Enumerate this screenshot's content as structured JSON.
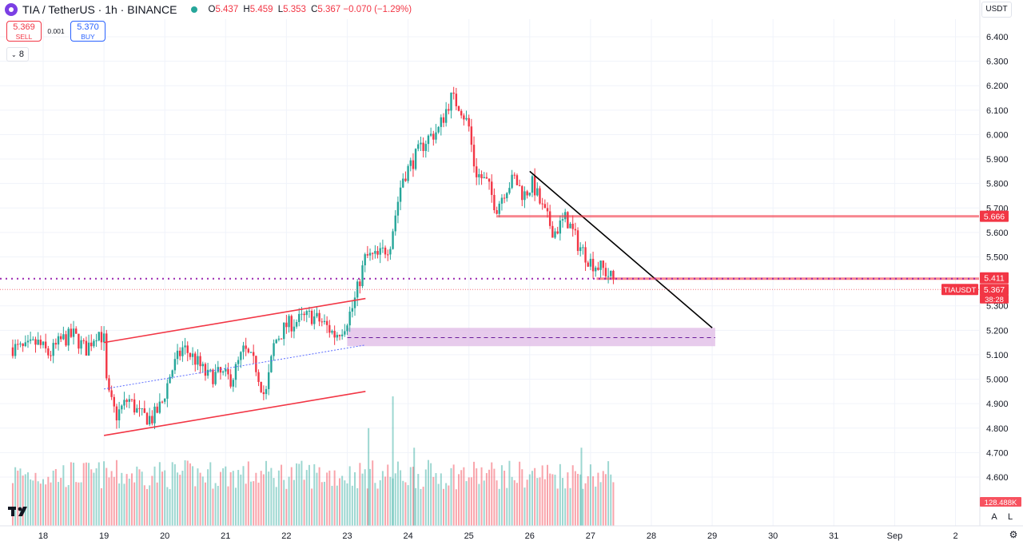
{
  "header": {
    "title": "TIA / TetherUS · 1h · BINANCE",
    "ohlc": [
      {
        "k": "O",
        "v": "5.437"
      },
      {
        "k": "H",
        "v": "5.459"
      },
      {
        "k": "L",
        "v": "5.353"
      },
      {
        "k": "C",
        "v": "5.367"
      }
    ],
    "change": "−0.070 (−1.29%)"
  },
  "trade": {
    "sell_price": "5.369",
    "sell_label": "SELL",
    "spread": "0.001",
    "buy_price": "5.370",
    "buy_label": "BUY"
  },
  "indicators_count": "8",
  "currency": "USDT",
  "price_axis": [
    "6.400",
    "6.300",
    "6.200",
    "6.100",
    "6.000",
    "5.900",
    "5.800",
    "5.700",
    "5.600",
    "5.500",
    "5.300",
    "5.200",
    "5.100",
    "5.000",
    "4.900",
    "4.800",
    "4.700",
    "4.600"
  ],
  "time_axis": [
    "18",
    "19",
    "20",
    "21",
    "22",
    "23",
    "24",
    "25",
    "26",
    "27",
    "28",
    "29",
    "30",
    "31",
    "Sep",
    "2"
  ],
  "price_labels": {
    "resistance": "5.666",
    "support": "5.411",
    "symbol": "TIAUSDT",
    "last": "5.367",
    "countdown": "38:28",
    "volume": "128.488K"
  },
  "buttons": {
    "auto": "A",
    "log": "L"
  },
  "colors": {
    "up": "#26a69a",
    "down": "#f23645",
    "purple": "#9c27b0",
    "zone": "#e1bee7",
    "channel": "#f23645",
    "trend": "#000000"
  },
  "chart_data": {
    "type": "candlestick",
    "symbol": "TIA / TetherUS",
    "interval": "1h",
    "x_labels": [
      "18",
      "19",
      "20",
      "21",
      "22",
      "23",
      "24",
      "25",
      "26",
      "27",
      "28",
      "29",
      "30",
      "31",
      "Sep",
      "2"
    ],
    "ylim": [
      4.5,
      6.45
    ],
    "price_path": [
      [
        17.5,
        5.13
      ],
      [
        17.7,
        5.12
      ],
      [
        17.9,
        5.15
      ],
      [
        18.1,
        5.1
      ],
      [
        18.3,
        5.16
      ],
      [
        18.5,
        5.18
      ],
      [
        18.7,
        5.12
      ],
      [
        18.9,
        5.2
      ],
      [
        19.0,
        5.16
      ],
      [
        19.05,
        4.95
      ],
      [
        19.2,
        4.85
      ],
      [
        19.4,
        4.92
      ],
      [
        19.6,
        4.85
      ],
      [
        19.8,
        4.84
      ],
      [
        19.95,
        4.9
      ],
      [
        20.1,
        5.03
      ],
      [
        20.3,
        5.13
      ],
      [
        20.5,
        5.08
      ],
      [
        20.7,
        5.01
      ],
      [
        20.9,
        5.02
      ],
      [
        21.1,
        5.0
      ],
      [
        21.3,
        5.12
      ],
      [
        21.5,
        5.05
      ],
      [
        21.65,
        4.92
      ],
      [
        21.8,
        5.15
      ],
      [
        22.0,
        5.22
      ],
      [
        22.2,
        5.24
      ],
      [
        22.4,
        5.26
      ],
      [
        22.6,
        5.23
      ],
      [
        22.8,
        5.18
      ],
      [
        22.95,
        5.22
      ],
      [
        23.1,
        5.3
      ],
      [
        23.3,
        5.5
      ],
      [
        23.5,
        5.5
      ],
      [
        23.7,
        5.55
      ],
      [
        23.9,
        5.82
      ],
      [
        24.1,
        5.9
      ],
      [
        24.3,
        5.98
      ],
      [
        24.5,
        6.02
      ],
      [
        24.7,
        6.15
      ],
      [
        24.85,
        6.12
      ],
      [
        25.0,
        6.03
      ],
      [
        25.1,
        5.85
      ],
      [
        25.3,
        5.8
      ],
      [
        25.45,
        5.7
      ],
      [
        25.6,
        5.78
      ],
      [
        25.75,
        5.82
      ],
      [
        25.9,
        5.75
      ],
      [
        26.05,
        5.8
      ],
      [
        26.2,
        5.7
      ],
      [
        26.4,
        5.6
      ],
      [
        26.6,
        5.66
      ],
      [
        26.8,
        5.55
      ],
      [
        27.0,
        5.48
      ],
      [
        27.2,
        5.45
      ],
      [
        27.4,
        5.4
      ]
    ],
    "volume_spikes": [
      [
        23.35,
        4.8
      ],
      [
        23.75,
        4.93
      ],
      [
        24.1,
        4.72
      ],
      [
        26.85,
        4.72
      ]
    ],
    "volume_last": "128.488K",
    "channel": {
      "upper": [
        [
          19.0,
          5.15
        ],
        [
          23.3,
          5.33
        ]
      ],
      "lower": [
        [
          19.0,
          4.77
        ],
        [
          23.3,
          4.95
        ]
      ],
      "mid": [
        [
          19.0,
          4.96
        ],
        [
          23.3,
          5.14
        ]
      ]
    },
    "trendline": [
      [
        26.0,
        5.85
      ],
      [
        29.0,
        5.21
      ]
    ],
    "resistance_level": {
      "price": 5.666,
      "from": 25.45
    },
    "support_level": {
      "price": 5.411,
      "from": 27.1
    },
    "support_dotted": 5.411,
    "last_price_line": 5.367,
    "demand_zone": {
      "from": 23.0,
      "to": 29.05,
      "low": 5.135,
      "high": 5.21,
      "mid": 5.17
    },
    "last_price": 5.367
  }
}
